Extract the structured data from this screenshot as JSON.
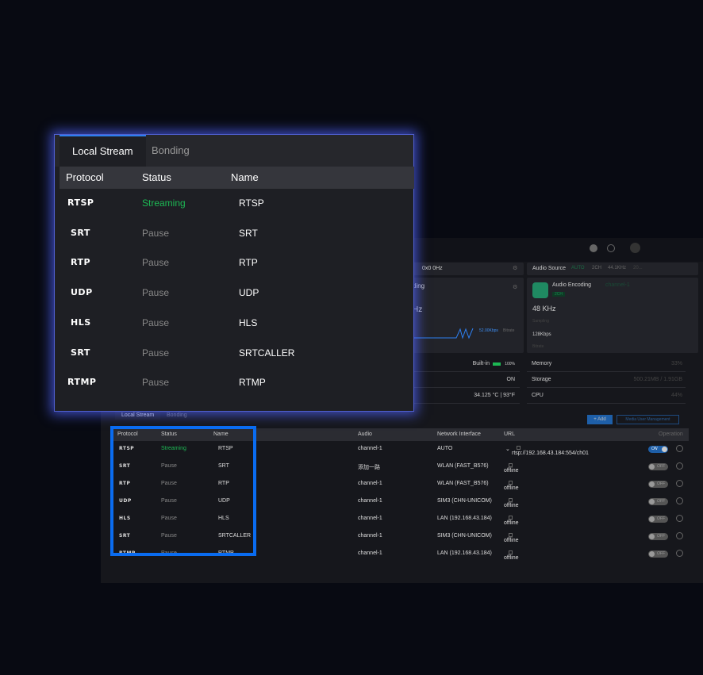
{
  "header_icons": [
    "info-icon",
    "settings-icon",
    "user-avatar-icon"
  ],
  "video": {
    "resolution_partial": "0x0 0Hz",
    "encoding_partial": "ding",
    "freq_partial": "Hz",
    "bitrate_value": "52.00Kbps",
    "bitrate_label": "Bitrate"
  },
  "audio": {
    "source_label": "Audio Source",
    "source_mode": "AUTO",
    "channels": "2CH",
    "rate": "44.1KHz",
    "depth_partial": "20...",
    "encoding_label": "Audio Encoding",
    "encoding_channel": "channel-1",
    "badge": "2CH",
    "sampling_value": "48 KHz",
    "sampling_label": "Sampling",
    "bitrate_value": "128Kbps",
    "bitrate_label": "Bitrate"
  },
  "stats_left": [
    {
      "value": "Built-in",
      "extra": "100%"
    },
    {
      "value": "ON"
    },
    {
      "value": "34.125 °C | 93°F"
    }
  ],
  "stats_right": [
    {
      "label": "Memory",
      "value": "33%"
    },
    {
      "label": "Storage",
      "value": "500.21MB / 1.91GB"
    },
    {
      "label": "CPU",
      "value": "44%"
    }
  ],
  "colors": {
    "accent": "#2d7ff0",
    "streaming": "#1db954",
    "highlight_box": "#0a6cf0"
  },
  "table": {
    "tabs": [
      "Local Stream",
      "Bonding"
    ],
    "add_label": "+ Add",
    "media_user_label": "Media User Management",
    "headers": [
      "Protocol",
      "Status",
      "Name",
      "Audio",
      "Network Interface",
      "URL",
      "Operation"
    ],
    "rows": [
      {
        "protocol": "RTSP",
        "status": "Streaming",
        "name": "RTSP",
        "audio": "channel-1",
        "net": "AUTO",
        "url": "rtsp://192.168.43.184:554/ch01",
        "toggle": "ON"
      },
      {
        "protocol": "SRT",
        "status": "Pause",
        "name": "SRT",
        "audio": "添加一路",
        "net": "WLAN (FAST_B576)",
        "url": "offline",
        "toggle": "OFF"
      },
      {
        "protocol": "RTP",
        "status": "Pause",
        "name": "RTP",
        "audio": "channel-1",
        "net": "WLAN (FAST_B576)",
        "url": "offline",
        "toggle": "OFF"
      },
      {
        "protocol": "UDP",
        "status": "Pause",
        "name": "UDP",
        "audio": "channel-1",
        "net": "SIM3 (CHN-UNICOM)",
        "url": "offline",
        "toggle": "OFF"
      },
      {
        "protocol": "HLS",
        "status": "Pause",
        "name": "HLS",
        "audio": "channel-1",
        "net": "LAN (192.168.43.184)",
        "url": "offline",
        "toggle": "OFF"
      },
      {
        "protocol": "SRT",
        "status": "Pause",
        "name": "SRTCALLER",
        "audio": "channel-1",
        "net": "SIM3 (CHN-UNICOM)",
        "url": "offline",
        "toggle": "OFF"
      },
      {
        "protocol": "RTMP",
        "status": "Pause",
        "name": "RTMP",
        "audio": "channel-1",
        "net": "LAN (192.168.43.184)",
        "url": "offline",
        "toggle": "OFF"
      }
    ]
  }
}
